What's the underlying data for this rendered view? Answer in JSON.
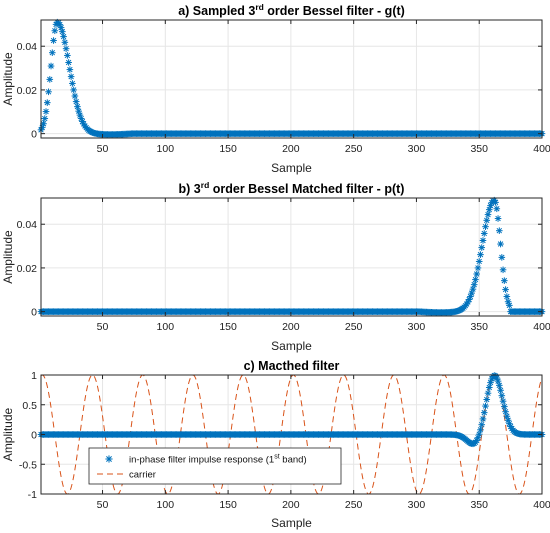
{
  "colors": {
    "samples": "#0072BD",
    "carrier": "#D95319",
    "grid": "#e6e6e6",
    "axis": "#262626"
  },
  "chart_data": [
    {
      "type": "scatter",
      "title": {
        "prefix": "a) Sampled 3",
        "sup": "rd",
        "suffix": " order Bessel filter - g(t)"
      },
      "xlabel": "Sample",
      "ylabel": "Amplitude",
      "xlim": [
        1,
        400
      ],
      "ylim": [
        -0.002,
        0.052
      ],
      "xticks": [
        50,
        100,
        150,
        200,
        250,
        300,
        350,
        400
      ],
      "xtick_labels": [
        "50",
        "100",
        "150",
        "200",
        "250",
        "300",
        "350",
        "400"
      ],
      "yticks": [
        0,
        0.02,
        0.04
      ],
      "ytick_labels": [
        "0",
        "0.02",
        "0.04"
      ],
      "grid": true,
      "marker": "asterisk",
      "pulse": {
        "peak_sample": 14,
        "peak_value": 0.051,
        "start_sample": 1,
        "end_sample": 45
      },
      "series": [
        {
          "x_range": [
            1,
            400
          ],
          "values_description_points": [
            [
              1,
              0.0
            ],
            [
              5,
              0.013
            ],
            [
              10,
              0.042
            ],
            [
              14,
              0.051
            ],
            [
              20,
              0.041
            ],
            [
              26,
              0.022
            ],
            [
              32,
              0.008
            ],
            [
              38,
              0.002
            ],
            [
              45,
              0.0
            ],
            [
              400,
              0.0
            ]
          ]
        }
      ]
    },
    {
      "type": "scatter",
      "title": {
        "prefix": "b) 3",
        "sup": "rd",
        "suffix": " order Bessel Matched filter - p(t)"
      },
      "xlabel": "Sample",
      "ylabel": "Amplitude",
      "xlim": [
        1,
        400
      ],
      "ylim": [
        -0.002,
        0.052
      ],
      "xticks": [
        50,
        100,
        150,
        200,
        250,
        300,
        350,
        400
      ],
      "xtick_labels": [
        "50",
        "100",
        "150",
        "200",
        "250",
        "300",
        "350",
        "400"
      ],
      "yticks": [
        0,
        0.02,
        0.04
      ],
      "ytick_labels": [
        "0",
        "0.02",
        "0.04"
      ],
      "grid": true,
      "marker": "asterisk",
      "pulse": {
        "peak_sample": 362,
        "peak_value": 0.051,
        "start_sample": 330,
        "end_sample": 374
      },
      "series": [
        {
          "x_range": [
            1,
            400
          ],
          "values_description_points": [
            [
              1,
              0.0
            ],
            [
              330,
              0.0
            ],
            [
              336,
              0.002
            ],
            [
              342,
              0.008
            ],
            [
              348,
              0.022
            ],
            [
              354,
              0.041
            ],
            [
              362,
              0.051
            ],
            [
              366,
              0.042
            ],
            [
              370,
              0.013
            ],
            [
              374,
              0.0
            ],
            [
              400,
              0.0
            ]
          ]
        }
      ]
    },
    {
      "type": "line",
      "title": {
        "prefix": "c) Macthed filter",
        "sup": "",
        "suffix": ""
      },
      "xlabel": "Sample",
      "ylabel": "Amplitude",
      "xlim": [
        1,
        400
      ],
      "ylim": [
        -1,
        1
      ],
      "xticks": [
        50,
        100,
        150,
        200,
        250,
        300,
        350,
        400
      ],
      "xtick_labels": [
        "50",
        "100",
        "150",
        "200",
        "250",
        "300",
        "350",
        "400"
      ],
      "yticks": [
        -1,
        -0.5,
        0,
        0.5,
        1
      ],
      "ytick_labels": [
        "-1",
        "-0.5",
        "0",
        "0.5",
        "1"
      ],
      "grid": true,
      "legend": {
        "placement": "lower-left",
        "entries": [
          {
            "prefix": "in-phase filter impulse response (1",
            "sup": "st",
            "suffix": " band)"
          },
          {
            "prefix": "carrier",
            "sup": "",
            "suffix": ""
          }
        ]
      },
      "series": [
        {
          "role": "in-phase filter impulse response",
          "marker": "asterisk",
          "peak_sample": 362,
          "peak_value": 1.0,
          "dip_sample": 347,
          "dip_value": -0.2,
          "start_sample": 325,
          "end_sample": 378
        },
        {
          "role": "carrier",
          "line": "dashed",
          "amplitude": 1.0,
          "period_samples": 40,
          "first_peak_sample": 2
        }
      ]
    }
  ]
}
